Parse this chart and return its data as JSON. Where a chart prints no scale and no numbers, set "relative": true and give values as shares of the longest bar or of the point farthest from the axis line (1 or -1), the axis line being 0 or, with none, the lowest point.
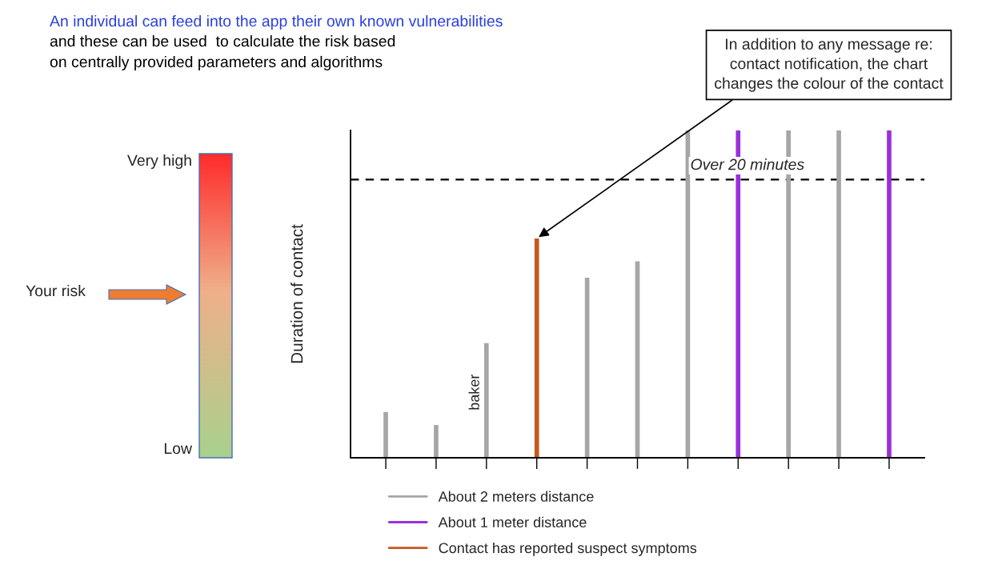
{
  "chart_data": {
    "type": "bar",
    "title": "An individual can feed into the app their own known vulnerabilities",
    "subtitle": "and these can be used  to calculate the risk based\non centrally provided parameters and algorithms",
    "ylabel": "Duration of contact",
    "relative": true,
    "stacked": true,
    "legend": "bottom",
    "categories": [
      null,
      null,
      null,
      null,
      null,
      null,
      null,
      null,
      null,
      null,
      null
    ],
    "series": [
      {
        "name": "About 2 meters distance",
        "color": "#a6a6a6",
        "values": [
          0.14,
          0.1,
          0.35,
          0,
          0.55,
          0.6,
          1,
          0,
          1,
          1,
          0
        ]
      },
      {
        "name": "About 1 meter distance",
        "color": "#9b30d9",
        "values": [
          0,
          0,
          0,
          0,
          0,
          0,
          0,
          1,
          0,
          0,
          1
        ]
      },
      {
        "name": "Contact has reported suspect symptoms",
        "color": "#c5581e",
        "values": [
          0,
          0,
          0,
          0.67,
          0,
          0,
          0,
          0,
          0,
          0,
          0
        ]
      }
    ],
    "ref_lines": [
      {
        "axis": "y",
        "value": 0.85,
        "label": "Over 20 minutes",
        "color": "#000000",
        "line_style": "dashed"
      }
    ],
    "annotations": [
      "baker",
      "In addition to any message re:\ncontact notification, the chart\nchanges the colour of the contact",
      "Very high",
      "Low",
      "Your risk"
    ]
  }
}
